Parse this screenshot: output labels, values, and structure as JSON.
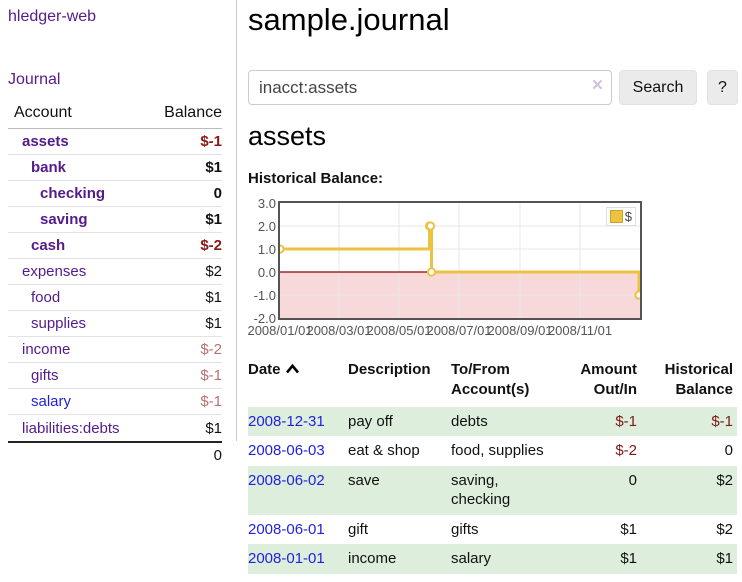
{
  "app": {
    "title": "hledger-web",
    "nav_journal": "Journal"
  },
  "sidebar": {
    "headers": {
      "account": "Account",
      "balance": "Balance"
    },
    "accounts": [
      {
        "name": "assets",
        "balance": "$-1",
        "depth": 1,
        "bold": true,
        "link": "purple"
      },
      {
        "name": "bank",
        "balance": "$1",
        "depth": 2,
        "bold": true,
        "link": "purple"
      },
      {
        "name": "checking",
        "balance": "0",
        "depth": 3,
        "bold": true,
        "link": "purple"
      },
      {
        "name": "saving",
        "balance": "$1",
        "depth": 3,
        "bold": true,
        "link": "purple"
      },
      {
        "name": "cash",
        "balance": "$-2",
        "depth": 2,
        "bold": true,
        "link": "purple"
      },
      {
        "name": "expenses",
        "balance": "$2",
        "depth": 1,
        "bold": false,
        "link": "purple"
      },
      {
        "name": "food",
        "balance": "$1",
        "depth": 2,
        "bold": false,
        "link": "purple"
      },
      {
        "name": "supplies",
        "balance": "$1",
        "depth": 2,
        "bold": false,
        "link": "purple"
      },
      {
        "name": "income",
        "balance": "$-2",
        "depth": 1,
        "bold": false,
        "link": "purple"
      },
      {
        "name": "gifts",
        "balance": "$-1",
        "depth": 2,
        "bold": false,
        "link": "purple"
      },
      {
        "name": "salary",
        "balance": "$-1",
        "depth": 2,
        "bold": false,
        "link": "blue"
      },
      {
        "name": "liabilities:debts",
        "balance": "$1",
        "depth": 1,
        "bold": false,
        "link": "purple"
      }
    ],
    "total": "0"
  },
  "main": {
    "title": "sample.journal",
    "search": {
      "value": "inacct:assets",
      "clear_glyph": "×",
      "button_label": "Search",
      "help_label": "?"
    },
    "account_heading": "assets",
    "chart_label": "Historical Balance:"
  },
  "chart_data": {
    "type": "line",
    "step": true,
    "series": [
      {
        "name": "$",
        "points": [
          [
            "2008-01-01",
            1
          ],
          [
            "2008-06-01",
            2
          ],
          [
            "2008-06-02",
            2
          ],
          [
            "2008-06-03",
            0
          ],
          [
            "2008-12-31",
            -1
          ]
        ]
      }
    ],
    "series_label": "$",
    "title": "Historical Balance:",
    "xlim": [
      "2008-01-01",
      "2009-01-01"
    ],
    "ylim": [
      -2,
      3
    ],
    "y_ticks": [
      "3.0",
      "2.0",
      "1.0",
      "0.0",
      "-1.0",
      "-2.0"
    ],
    "x_ticks": [
      "2008/01/01",
      "2008/03/01",
      "2008/05/01",
      "2008/07/01",
      "2008/09/01",
      "2008/11/01"
    ],
    "legend_position": "top-right",
    "grid": true,
    "line_color": "#edc240",
    "zero_line_color": "#8b0000",
    "negative_region_color": "#f8d9d9"
  },
  "register": {
    "headers": {
      "date": "Date",
      "description": "Description",
      "accounts": "To/From Account(s)",
      "amount": "Amount Out/In",
      "balance": "Historical Balance"
    },
    "rows": [
      {
        "date": "2008-12-31",
        "description": "pay off",
        "accounts": "debts",
        "amount": "$-1",
        "balance": "$-1"
      },
      {
        "date": "2008-06-03",
        "description": "eat & shop",
        "accounts": "food, supplies",
        "amount": "$-2",
        "balance": "0"
      },
      {
        "date": "2008-06-02",
        "description": "save",
        "accounts": "saving, checking",
        "amount": "0",
        "balance": "$2"
      },
      {
        "date": "2008-06-01",
        "description": "gift",
        "accounts": "gifts",
        "amount": "$1",
        "balance": "$2"
      },
      {
        "date": "2008-01-01",
        "description": "income",
        "accounts": "salary",
        "amount": "$1",
        "balance": "$1"
      }
    ]
  }
}
